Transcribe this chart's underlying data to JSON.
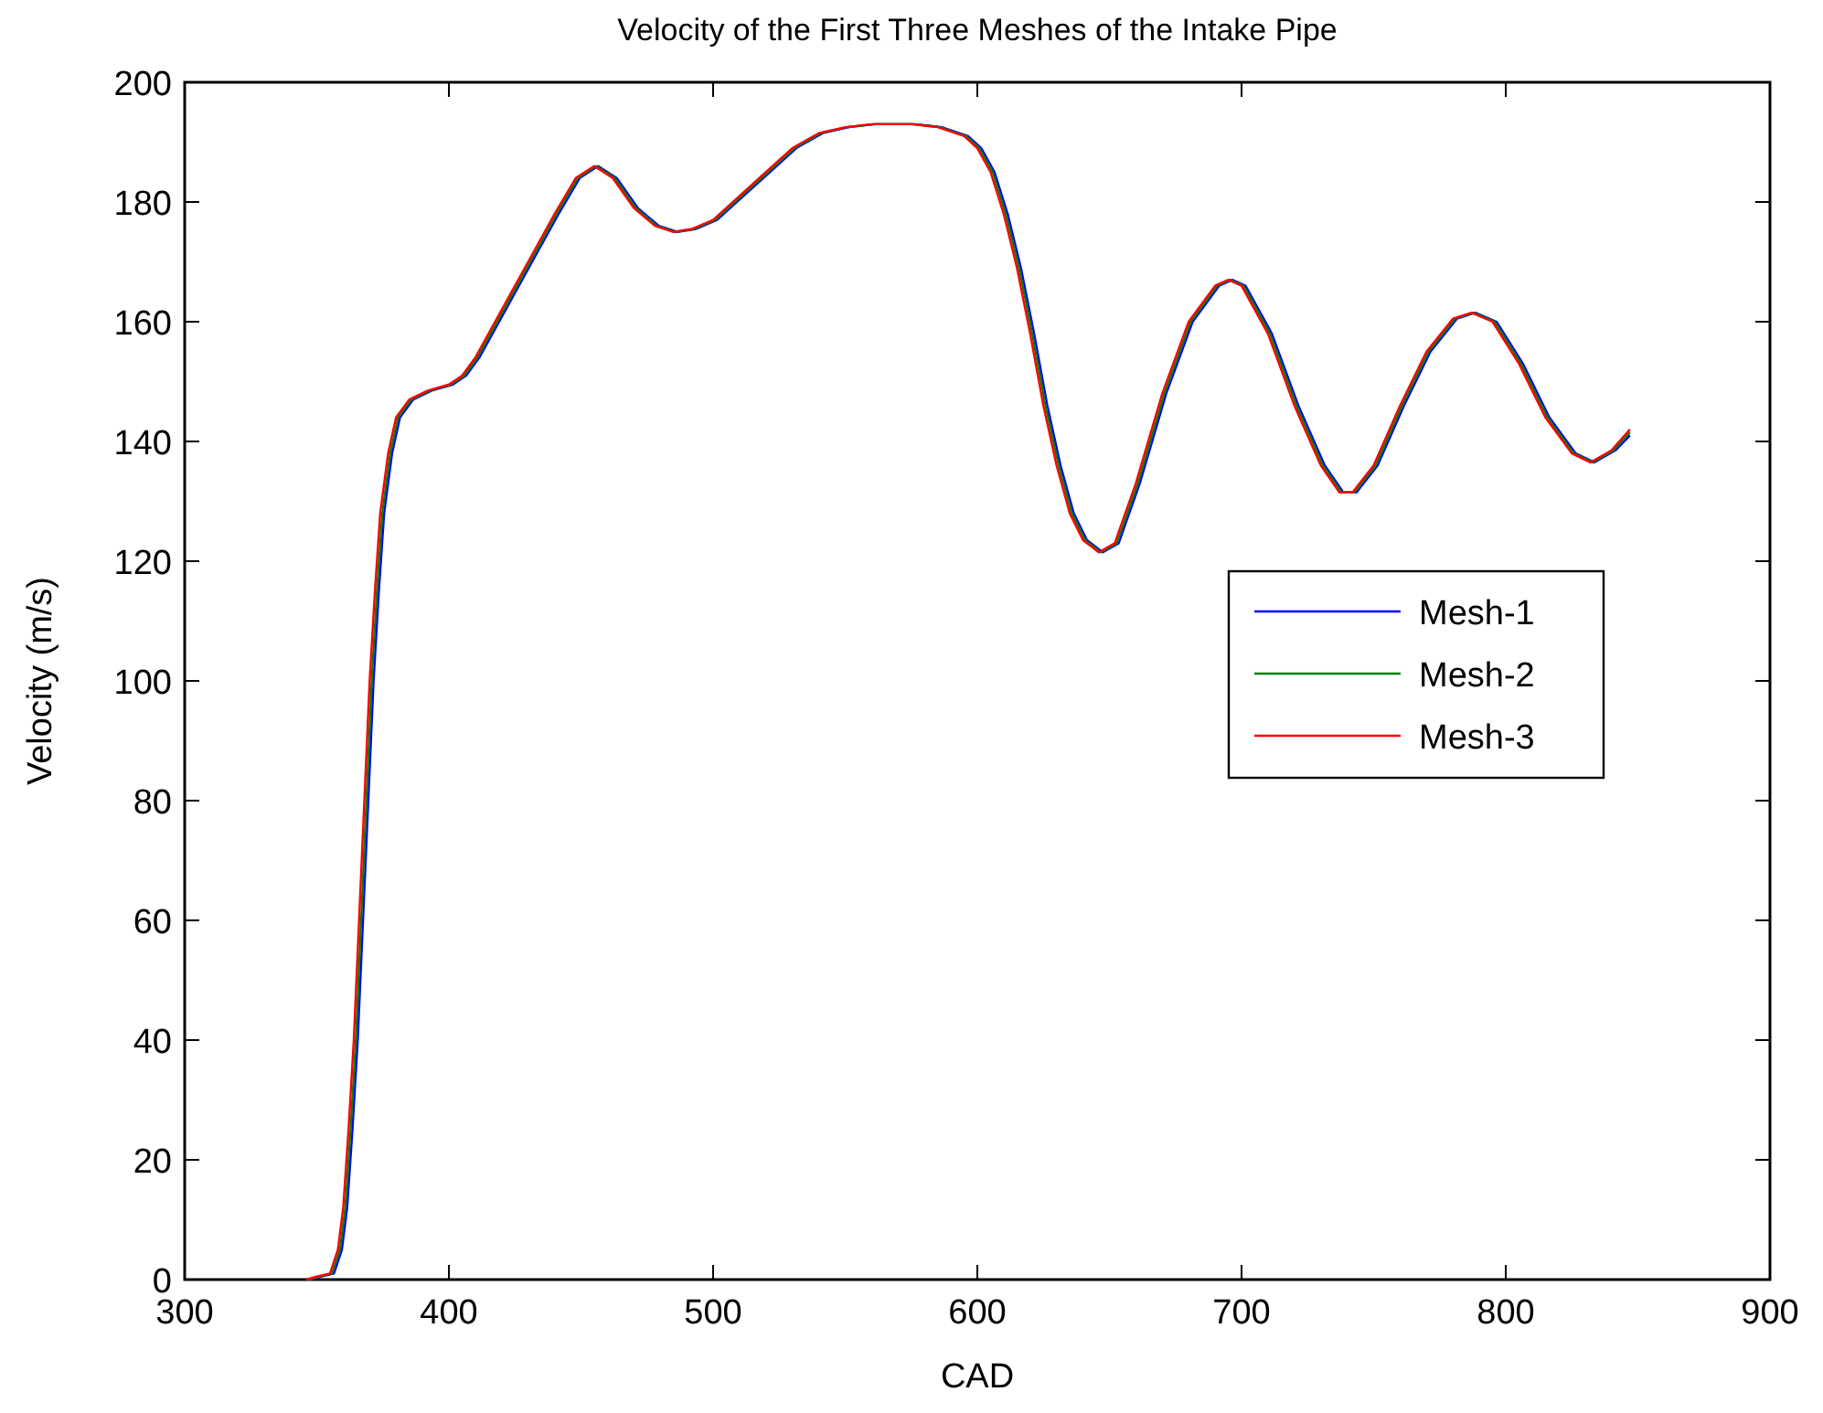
{
  "chart_data": {
    "type": "line",
    "title": "Velocity of the First Three Meshes of the Intake Pipe",
    "xlabel": "CAD",
    "ylabel": "Velocity (m/s)",
    "xlim": [
      300,
      900
    ],
    "xticks": [
      300,
      400,
      500,
      600,
      700,
      800,
      900
    ],
    "ylim": [
      0,
      200
    ],
    "yticks": [
      0,
      20,
      40,
      60,
      80,
      100,
      120,
      140,
      160,
      180,
      200
    ],
    "grid": false,
    "legend": "right",
    "marker": "none",
    "line_style": "solid",
    "series": [
      {
        "name": "Mesh-1",
        "color": "#0000ff",
        "x": [
          347.5,
          351.5,
          356.5,
          359.5,
          361.5,
          363.5,
          365.5,
          367.5,
          369.5,
          371.5,
          373.5,
          375.5,
          378.5,
          381.5,
          386.5,
          393.5,
          401.5,
          406.5,
          411.5,
          421.5,
          431.5,
          441.5,
          449.5,
          456.5,
          463.5,
          471.5,
          479.5,
          486.5,
          493.5,
          501.5,
          511.5,
          521.5,
          531.5,
          541.5,
          551.5,
          561.5,
          576.5,
          586.5,
          596.5,
          601.5,
          606.5,
          611.5,
          616.5,
          621.5,
          626.5,
          631.5,
          636.5,
          641.5,
          647.5,
          653.5,
          661.5,
          671.5,
          681.5,
          691.5,
          696.5,
          701.5,
          711.5,
          721.5,
          731.5,
          738.5,
          743.5,
          751.5,
          761.5,
          771.5,
          781.5,
          788.5,
          796.5,
          806.5,
          816.5,
          826.5,
          833.5,
          841.5,
          847
        ],
        "values": [
          0,
          0.5,
          1,
          5,
          12,
          25,
          40,
          60,
          80,
          100,
          115,
          128,
          138,
          144,
          147,
          148.5,
          149.5,
          151,
          154,
          162,
          170,
          178,
          184,
          186,
          184,
          179,
          176,
          175,
          175.5,
          177,
          181,
          185,
          189,
          191.5,
          192.5,
          193,
          193,
          192.5,
          191,
          189,
          185,
          178,
          169,
          158,
          146,
          136,
          128,
          123.5,
          121.5,
          123,
          133,
          148,
          160,
          166,
          167,
          166,
          158,
          146,
          136,
          131.5,
          131.5,
          136,
          146,
          155,
          160.5,
          161.5,
          160,
          153,
          144,
          138,
          136.5,
          138.5,
          141
        ]
      },
      {
        "name": "Mesh-2",
        "color": "#008000",
        "x": [
          346.8,
          350.8,
          355.8,
          358.8,
          360.8,
          362.8,
          364.8,
          366.8,
          368.8,
          370.8,
          372.8,
          374.8,
          377.8,
          380.8,
          385.8,
          392.8,
          400.8,
          405.8,
          410.8,
          420.8,
          430.8,
          440.8,
          448.8,
          455.8,
          462.8,
          470.8,
          478.8,
          485.8,
          492.8,
          500.8,
          510.8,
          520.8,
          530.8,
          540.8,
          550.8,
          560.8,
          575.8,
          585.8,
          595.8,
          600.8,
          605.8,
          610.8,
          615.8,
          620.8,
          625.8,
          630.8,
          635.8,
          640.8,
          646.8,
          652.8,
          660.8,
          670.8,
          680.8,
          690.8,
          695.8,
          700.8,
          710.8,
          720.8,
          730.8,
          737.8,
          742.8,
          750.8,
          760.8,
          770.8,
          780.8,
          787.8,
          795.8,
          805.8,
          815.8,
          825.8,
          832.8,
          840.8,
          847
        ],
        "values": [
          0,
          0.5,
          1,
          5,
          12,
          25,
          40,
          60,
          80,
          100,
          115,
          128,
          138,
          144,
          147,
          148.5,
          149.5,
          151,
          154,
          162,
          170,
          178,
          184,
          186,
          184,
          179,
          176,
          175,
          175.5,
          177,
          181,
          185,
          189,
          191.5,
          192.5,
          193,
          193,
          192.5,
          191,
          189,
          185,
          178,
          169,
          158,
          146,
          136,
          128,
          123.5,
          121.5,
          123,
          133,
          148,
          160,
          166,
          167,
          166,
          158,
          146,
          136,
          131.5,
          131.5,
          136,
          146,
          155,
          160.5,
          161.5,
          160,
          153,
          144,
          138,
          136.5,
          138.5,
          141.5
        ]
      },
      {
        "name": "Mesh-3",
        "color": "#ff0000",
        "x": [
          346,
          350,
          355,
          358,
          360,
          362,
          364,
          366,
          368,
          370,
          372,
          374,
          377,
          380,
          385,
          392,
          400,
          405,
          410,
          420,
          430,
          440,
          448,
          455,
          462,
          470,
          478,
          485,
          492,
          500,
          510,
          520,
          530,
          540,
          550,
          560,
          575,
          585,
          595,
          600,
          605,
          610,
          615,
          620,
          625,
          630,
          635,
          640,
          646,
          652,
          660,
          670,
          680,
          690,
          695,
          700,
          710,
          720,
          730,
          737,
          742,
          750,
          760,
          770,
          780,
          787,
          795,
          805,
          815,
          825,
          832,
          840,
          847
        ],
        "values": [
          0,
          0.5,
          1,
          5,
          12,
          25,
          40,
          60,
          80,
          100,
          115,
          128,
          138,
          144,
          147,
          148.5,
          149.5,
          151,
          154,
          162,
          170,
          178,
          184,
          186,
          184,
          179,
          176,
          175,
          175.5,
          177,
          181,
          185,
          189,
          191.5,
          192.5,
          193,
          193,
          192.5,
          191,
          189,
          185,
          178,
          169,
          158,
          146,
          136,
          128,
          123.5,
          121.5,
          123,
          133,
          148,
          160,
          166,
          167,
          166,
          158,
          146,
          136,
          131.5,
          131.5,
          136,
          146,
          155,
          160.5,
          161.5,
          160,
          153,
          144,
          138,
          136.5,
          138.5,
          142
        ]
      }
    ]
  }
}
